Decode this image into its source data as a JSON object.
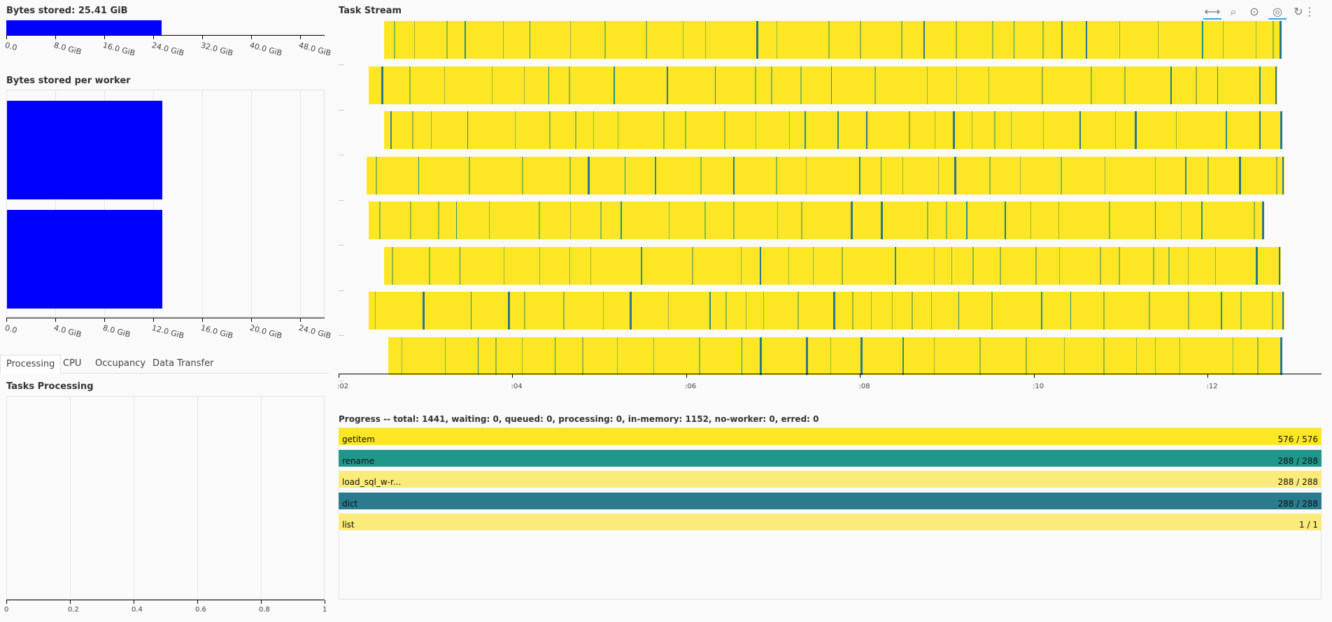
{
  "bytes_stored": {
    "title": "Bytes stored: 25.41 GiB",
    "value_gib": 25.41,
    "axis_max_gib": 52,
    "ticks": [
      "0.0",
      "8.0 GiB",
      "16.0 GiB",
      "24.0 GiB",
      "32.0 GiB",
      "40.0 GiB",
      "48.0 GiB"
    ],
    "bar_color": "#0000ff"
  },
  "bytes_per_worker": {
    "title": "Bytes stored per worker",
    "workers_gib": [
      12.7,
      12.7
    ],
    "axis_max_gib": 26,
    "ticks": [
      "0.0",
      "4.0 GiB",
      "8.0 GiB",
      "12.0 GiB",
      "16.0 GiB",
      "20.0 GiB",
      "24.0 GiB"
    ],
    "bar_color": "#0000ff"
  },
  "tabs": [
    {
      "label": "Processing",
      "active": true
    },
    {
      "label": "CPU",
      "active": false
    },
    {
      "label": "Occupancy",
      "active": false
    },
    {
      "label": "Data Transfer",
      "active": false
    }
  ],
  "tasks_processing": {
    "title": "Tasks Processing",
    "ticks": [
      "0",
      "0.2",
      "0.4",
      "0.6",
      "0.8",
      "1"
    ]
  },
  "task_stream": {
    "title": "Task Stream",
    "ticks": [
      ":02",
      ":04",
      ":06",
      ":08",
      ":10",
      ":12"
    ],
    "time_range": [
      2.0,
      13.3
    ],
    "rows": [
      {
        "start": 2.52,
        "end": 12.85
      },
      {
        "start": 2.35,
        "end": 12.8
      },
      {
        "start": 2.52,
        "end": 12.86
      },
      {
        "start": 2.32,
        "end": 12.88
      },
      {
        "start": 2.35,
        "end": 12.65
      },
      {
        "start": 2.52,
        "end": 12.84
      },
      {
        "start": 2.35,
        "end": 12.88
      },
      {
        "start": 2.57,
        "end": 12.86
      }
    ],
    "toolbar": [
      "pan-icon",
      "box-zoom-icon",
      "wheel-zoom-icon",
      "hover-icon",
      "reset-icon",
      "more-icon"
    ]
  },
  "progress": {
    "title": "Progress -- total: 1441, waiting: 0, queued: 0, processing: 0, in-memory: 1152, no-worker: 0, erred: 0",
    "items": [
      {
        "name": "getitem",
        "count": "576 / 576",
        "color": "#fde725"
      },
      {
        "name": "rename",
        "count": "288 / 288",
        "color": "#21968b"
      },
      {
        "name": "load_sql_w-r...",
        "count": "288 / 288",
        "color": "#fbeb7a"
      },
      {
        "name": "dict",
        "count": "288 / 288",
        "color": "#2a7b8e"
      },
      {
        "name": "list",
        "count": "1 / 1",
        "color": "#fbeb7a"
      }
    ]
  }
}
